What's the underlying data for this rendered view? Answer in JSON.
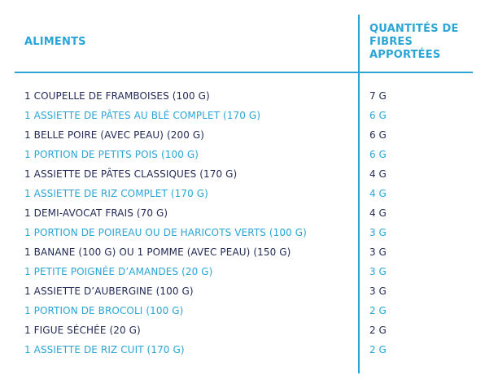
{
  "header": {
    "food_label": "ALIMENTS",
    "fiber_line1": "QUANTITÉS DE",
    "fiber_line2": "FIBRES",
    "fiber_line3": "APPORTÉES"
  },
  "colors": {
    "accent": "#2aa5d6",
    "text_dark": "#232b57"
  },
  "rows": [
    {
      "food": "1 COUPELLE DE FRAMBOISES (100 G)",
      "qty": "7 G"
    },
    {
      "food": "1 ASSIETTE DE PÂTES AU BLÉ COMPLET (170 G)",
      "qty": "6 G"
    },
    {
      "food": "1 BELLE POIRE (AVEC PEAU) (200 G)",
      "qty": "6 G"
    },
    {
      "food": "1 PORTION DE PETITS POIS (100 G)",
      "qty": "6 G"
    },
    {
      "food": "1 ASSIETTE DE PÂTES CLASSIQUES (170 G)",
      "qty": "4 G"
    },
    {
      "food": "1 ASSIETTE DE RIZ COMPLET (170 G)",
      "qty": "4 G"
    },
    {
      "food": "1 DEMI-AVOCAT FRAIS (70 G)",
      "qty": "4 G"
    },
    {
      "food": "1 PORTION DE POIREAU OU DE HARICOTS VERTS (100 G)",
      "qty": "3 G"
    },
    {
      "food": "1 BANANE (100 G) OU 1 POMME (AVEC PEAU) (150 G)",
      "qty": "3 G"
    },
    {
      "food": "1 PETITE POIGNÉE D’AMANDES (20 G)",
      "qty": "3 G"
    },
    {
      "food": "1 ASSIETTE D’AUBERGINE (100 G)",
      "qty": "3 G"
    },
    {
      "food": "1 PORTION DE BROCOLI (100 G)",
      "qty": "2 G"
    },
    {
      "food": "1 FIGUE SÉCHÉE (20 G)",
      "qty": "2 G"
    },
    {
      "food": "1 ASSIETTE DE RIZ CUIT (170 G)",
      "qty": "2 G"
    }
  ]
}
